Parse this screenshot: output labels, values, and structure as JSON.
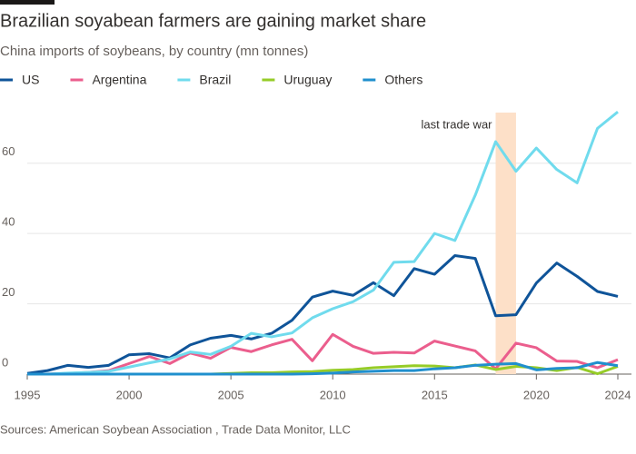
{
  "chart_data": {
    "type": "line",
    "title": "Brazilian soyabean farmers are gaining market share",
    "subtitle": "China imports of soybeans, by country (mn tonnes)",
    "source": "Sources: American Soybean Association , Trade Data Monitor, LLC",
    "x": [
      1995,
      1996,
      1997,
      1998,
      1999,
      2000,
      2001,
      2002,
      2003,
      2004,
      2005,
      2006,
      2007,
      2008,
      2009,
      2010,
      2011,
      2012,
      2013,
      2014,
      2015,
      2016,
      2017,
      2018,
      2019,
      2020,
      2021,
      2022,
      2023,
      2024
    ],
    "series": [
      {
        "name": "US",
        "color": "#0f5499",
        "values": [
          0.2,
          1,
          2.5,
          1.9,
          2.5,
          5.5,
          5.8,
          4.6,
          8.3,
          10.2,
          11,
          10,
          11.6,
          15.3,
          21.9,
          23.6,
          22.4,
          26,
          22.3,
          30,
          28.4,
          33.7,
          32.9,
          16.6,
          16.9,
          25.9,
          31.6,
          27.8,
          23.5,
          22.1
        ]
      },
      {
        "name": "Argentina",
        "color": "#eb5e8d",
        "values": [
          0,
          0,
          0.2,
          0.5,
          1,
          3,
          5,
          3,
          6,
          4.5,
          7.6,
          6.4,
          8.3,
          9.9,
          3.8,
          11.3,
          7.9,
          5.9,
          6.2,
          6,
          9.4,
          8,
          6.6,
          1.5,
          8.8,
          7.5,
          3.7,
          3.6,
          1.8,
          4.1
        ]
      },
      {
        "name": "Brazil",
        "color": "#70dbed",
        "values": [
          0,
          0,
          0.3,
          0.5,
          0.8,
          2,
          3.2,
          4.3,
          6.3,
          5.6,
          7.9,
          11.6,
          10.6,
          11.7,
          16,
          18.6,
          20.6,
          23.9,
          31.8,
          32,
          40,
          38,
          50.9,
          66.1,
          57.7,
          64.3,
          58.2,
          54.4,
          69.9,
          74.6
        ]
      },
      {
        "name": "Uruguay",
        "color": "#96cc28",
        "values": [
          0,
          0,
          0,
          0,
          0,
          0,
          0,
          0,
          0,
          0,
          0.2,
          0.4,
          0.4,
          0.6,
          0.7,
          1.1,
          1.3,
          1.8,
          2.1,
          2.4,
          2.3,
          1.8,
          2.6,
          1.3,
          2.2,
          1.8,
          1,
          1.9,
          0.1,
          2.2
        ]
      },
      {
        "name": "Others",
        "color": "#208fce",
        "values": [
          0,
          0,
          0,
          0,
          0,
          0,
          0,
          0,
          0,
          0,
          0,
          0,
          0,
          0,
          0.1,
          0.3,
          0.6,
          0.8,
          1,
          1,
          1.5,
          1.8,
          2.5,
          2.8,
          3,
          1.2,
          1.6,
          1.8,
          3.3,
          2.4
        ]
      }
    ],
    "xlim": [
      1995,
      2024
    ],
    "xticks": [
      1995,
      2000,
      2005,
      2010,
      2015,
      2020,
      2024
    ],
    "ylim": [
      0,
      78
    ],
    "yticks": [
      0,
      20,
      40,
      60
    ],
    "grid": true,
    "annotation": {
      "text": "last trade war",
      "x_start": 2018,
      "x_end": 2019,
      "color": "#fde0c8"
    }
  }
}
